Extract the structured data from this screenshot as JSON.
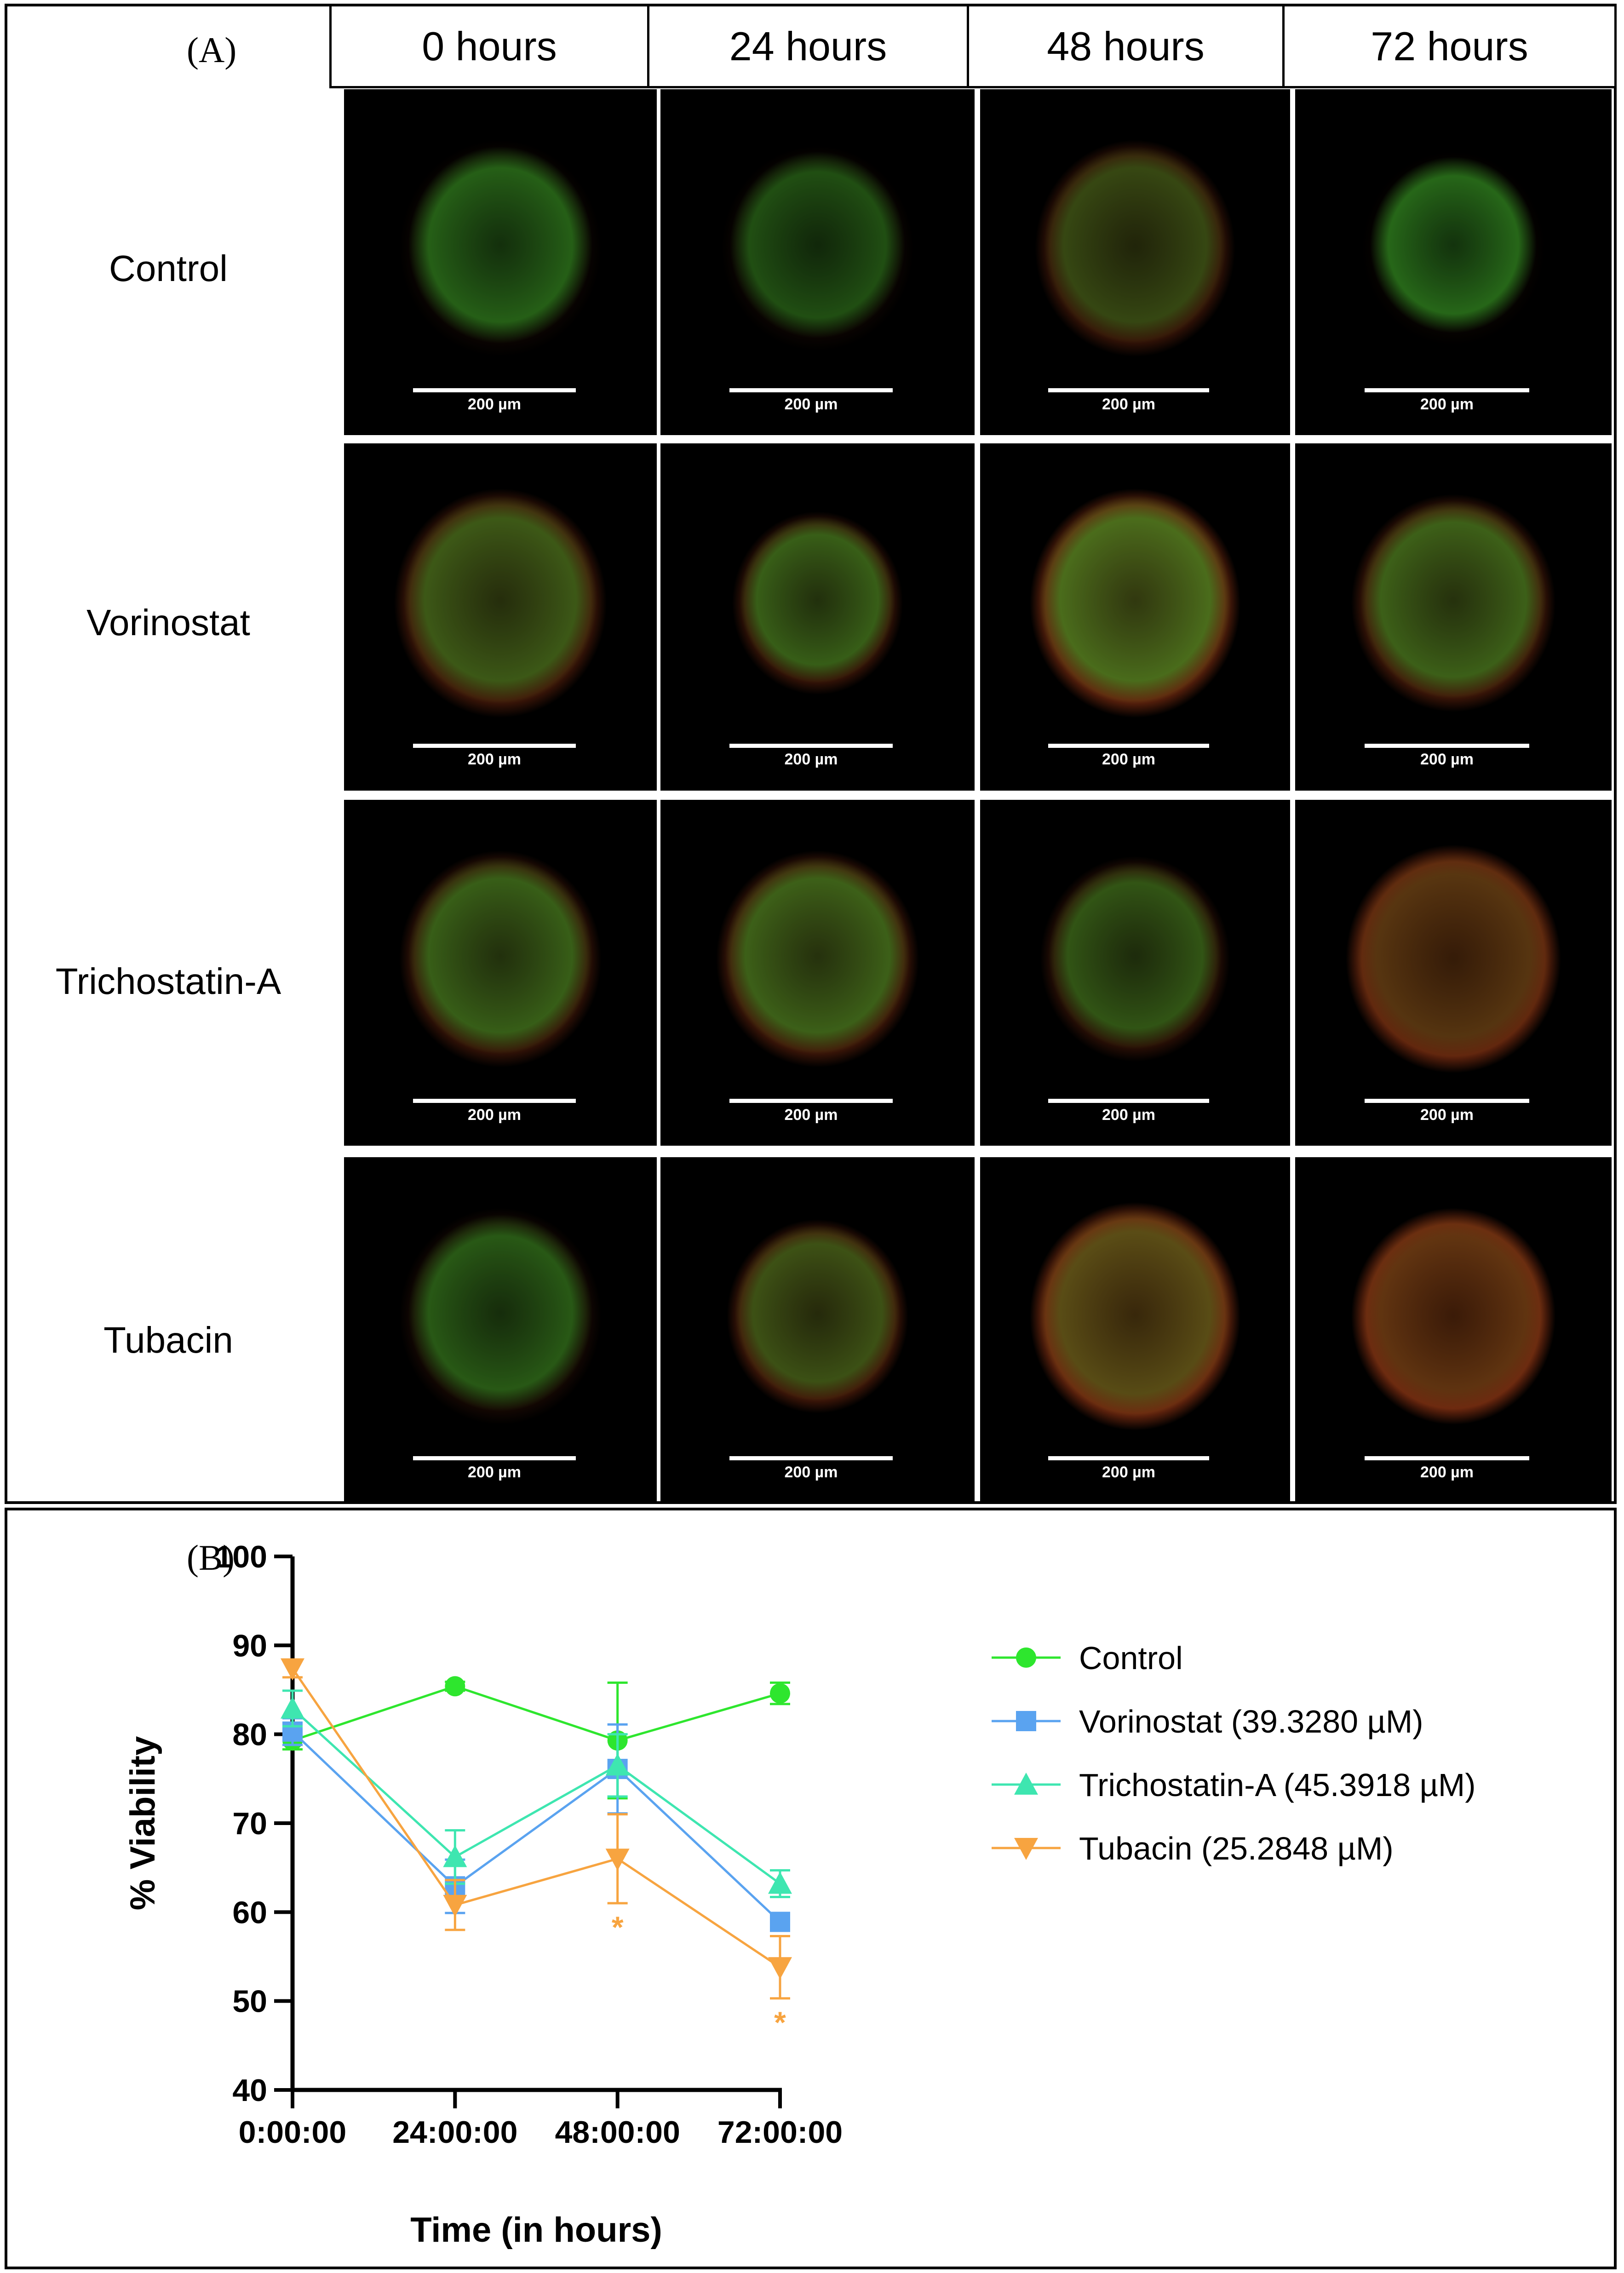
{
  "panel_a": {
    "label": "(A)",
    "columns": [
      "0 hours",
      "24 hours",
      "48 hours",
      "72 hours"
    ],
    "rows": [
      "Control",
      "Vorinostat",
      "Trichostatin-A",
      "Tubacin"
    ],
    "scale_bar_label": "200 µm"
  },
  "panel_b": {
    "label": "(B)"
  },
  "colors": {
    "control": "#2ee62e",
    "vorinostat": "#5aa3f0",
    "trichostatin": "#3ee6b0",
    "tubacin": "#f7a440"
  },
  "chart_data": {
    "type": "line",
    "title": "",
    "xlabel": "Time (in hours)",
    "ylabel": "% Viability",
    "ylim": [
      40,
      100
    ],
    "yticks": [
      40,
      50,
      60,
      70,
      80,
      90,
      100
    ],
    "categories": [
      "0:00:00",
      "24:00:00",
      "48:00:00",
      "72:00:00"
    ],
    "legend_position": "right",
    "series": [
      {
        "name": "Control",
        "marker": "circle",
        "color": "#2ee62e",
        "values": [
          79.3,
          85.4,
          79.3,
          84.6
        ],
        "error": [
          1.0,
          0.5,
          6.5,
          1.2
        ]
      },
      {
        "name": "Vorinostat (39.3280 µM)",
        "marker": "square",
        "color": "#5aa3f0",
        "values": [
          80.3,
          62.9,
          76.1,
          58.9
        ],
        "error": [
          1.5,
          3.0,
          5.0,
          1.0
        ]
      },
      {
        "name": "Trichostatin-A (45.3918 µM)",
        "marker": "triangle-up",
        "color": "#3ee6b0",
        "values": [
          82.9,
          66.2,
          76.5,
          63.2
        ],
        "error": [
          2.0,
          3.0,
          3.5,
          1.5
        ]
      },
      {
        "name": "Tubacin (25.2848 µM)",
        "marker": "triangle-down",
        "color": "#f7a440",
        "values": [
          87.4,
          60.8,
          66.0,
          53.8
        ],
        "error": [
          1.0,
          2.8,
          5.0,
          3.5
        ]
      }
    ],
    "annotations": [
      {
        "category": "48:00:00",
        "text": "*",
        "series": "Tubacin (25.2848 µM)"
      },
      {
        "category": "72:00:00",
        "text": "*",
        "series": "Tubacin (25.2848 µM)"
      }
    ]
  }
}
